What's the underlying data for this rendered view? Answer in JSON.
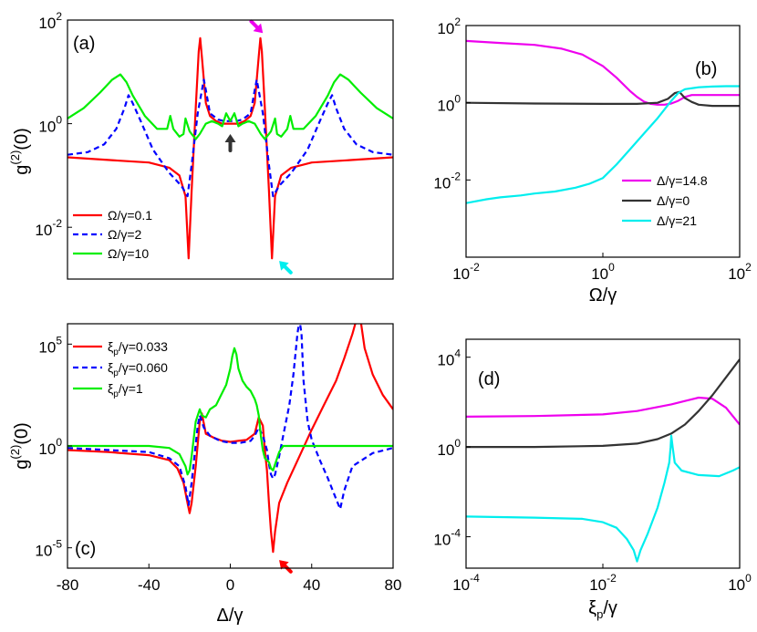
{
  "colors": {
    "red": "#ff0000",
    "blue": "#0000ff",
    "green": "#00ee00",
    "magenta": "#ee00ee",
    "dark": "#333333",
    "cyan": "#00eeee",
    "axis": "#000000"
  },
  "chart_data": [
    {
      "panel": "(a)",
      "type": "line",
      "xscale": "linear",
      "yscale": "log10",
      "xlim": [
        -80,
        80
      ],
      "ylim_log10": [
        -3,
        2
      ],
      "ylabel": {
        "base": "g",
        "sup": "(2)",
        "tail": "(0)"
      },
      "yticks": [
        {
          "base": "10",
          "exp": "2",
          "value_log10": 2
        },
        {
          "base": "10",
          "exp": "0",
          "value_log10": 0
        },
        {
          "base": "10",
          "exp": "-2",
          "value_log10": -2
        }
      ],
      "legend": {
        "placement": "bottom-left"
      },
      "series": [
        {
          "name": "Ω/γ=0.1",
          "color_key": "red",
          "dash": "solid",
          "x": [
            -80,
            -60,
            -40,
            -30,
            -25,
            -22,
            -20.5,
            -19,
            -17,
            -15.5,
            -14.8,
            -14,
            -12,
            -10,
            -7,
            -4,
            -2,
            0,
            2,
            4,
            7,
            10,
            12,
            14,
            14.8,
            15.5,
            17,
            19,
            20.5,
            22,
            25,
            30,
            40,
            60,
            80
          ],
          "y_log10": [
            -0.65,
            -0.7,
            -0.75,
            -0.85,
            -1,
            -1.4,
            -2.6,
            -1.3,
            0.3,
            1.4,
            1.65,
            1.3,
            0.4,
            0.15,
            0.05,
            0,
            0,
            0,
            0,
            0,
            0.05,
            0.15,
            0.4,
            1.3,
            1.65,
            1.4,
            0.3,
            -1.3,
            -2.6,
            -1.4,
            -1,
            -0.85,
            -0.75,
            -0.7,
            -0.65
          ]
        },
        {
          "name": "Ω/γ=2",
          "color_key": "blue",
          "dash": "dashed",
          "x": [
            -80,
            -70,
            -62,
            -56,
            -52,
            -50,
            -48,
            -44,
            -38,
            -30,
            -24,
            -21,
            -19,
            -16,
            -13,
            -12,
            -10,
            -6,
            -3,
            0,
            3,
            6,
            10,
            12,
            13,
            16,
            19,
            21,
            24,
            30,
            38,
            44,
            48,
            50,
            52,
            56,
            62,
            70,
            80
          ],
          "y_log10": [
            -0.6,
            -0.55,
            -0.4,
            -0.1,
            0.3,
            0.55,
            0.4,
            0.05,
            -0.5,
            -0.95,
            -1.2,
            -1.4,
            -0.8,
            0.2,
            0.85,
            0.65,
            0.2,
            0.08,
            0.05,
            0.05,
            0.05,
            0.08,
            0.2,
            0.65,
            0.85,
            0.2,
            -0.8,
            -1.4,
            -1.2,
            -0.95,
            -0.5,
            0.05,
            0.4,
            0.55,
            0.3,
            -0.1,
            -0.4,
            -0.55,
            -0.6
          ]
        },
        {
          "name": "Ω/γ=10",
          "color_key": "green",
          "dash": "solid",
          "x": [
            -80,
            -72,
            -64,
            -58,
            -54,
            -51,
            -48,
            -42,
            -36,
            -31,
            -29.5,
            -28,
            -25,
            -23,
            -22,
            -20,
            -17,
            -15,
            -12,
            -9,
            -6,
            -4,
            -2,
            0,
            2,
            4,
            6,
            9,
            12,
            15,
            17,
            20,
            22,
            23,
            25,
            28,
            29.5,
            31,
            36,
            42,
            48,
            51,
            54,
            58,
            64,
            72,
            80
          ],
          "y_log10": [
            0.1,
            0.3,
            0.6,
            0.85,
            0.95,
            0.8,
            0.55,
            0.15,
            -0.1,
            -0.1,
            0.15,
            -0.1,
            -0.25,
            -0.2,
            0.1,
            -0.15,
            -0.3,
            -0.2,
            0,
            0.05,
            0,
            -0.05,
            0.2,
            0.05,
            0.2,
            -0.05,
            0,
            0.05,
            0,
            -0.2,
            -0.3,
            -0.15,
            0.1,
            -0.2,
            -0.25,
            -0.1,
            0.15,
            -0.1,
            -0.1,
            0.15,
            0.55,
            0.8,
            0.95,
            0.85,
            0.6,
            0.3,
            0.1
          ]
        }
      ],
      "annotations": [
        {
          "kind": "arrow",
          "color_key": "magenta",
          "at_x": 16,
          "at_y_log10": 1.75,
          "direction": "down-right"
        },
        {
          "kind": "arrow",
          "color_key": "dark",
          "at_x": 0,
          "at_y_log10": -0.2,
          "direction": "up"
        },
        {
          "kind": "arrow",
          "color_key": "cyan",
          "at_x": 24,
          "at_y_log10": -2.65,
          "direction": "up-left"
        }
      ]
    },
    {
      "panel": "(b)",
      "type": "line",
      "xscale": "log10",
      "yscale": "log10",
      "xlim_log10": [
        -2,
        2
      ],
      "ylim_log10": [
        -4,
        2
      ],
      "xlabel": "Ω/γ",
      "xticks": [
        {
          "base": "10",
          "exp": "-2",
          "value_log10": -2
        },
        {
          "base": "10",
          "exp": "0",
          "value_log10": 0
        },
        {
          "base": "10",
          "exp": "2",
          "value_log10": 2
        }
      ],
      "yticks": [
        {
          "base": "10",
          "exp": "2",
          "value_log10": 2
        },
        {
          "base": "10",
          "exp": "0",
          "value_log10": 0
        },
        {
          "base": "10",
          "exp": "-2",
          "value_log10": -2
        }
      ],
      "legend": {
        "placement": "bottom-right"
      },
      "series": [
        {
          "name": "Δ/γ=14.8",
          "color_key": "magenta",
          "dash": "solid",
          "x_log10": [
            -2,
            -1.5,
            -1,
            -0.6,
            -0.3,
            0,
            0.2,
            0.4,
            0.5,
            0.6,
            0.7,
            0.8,
            0.9,
            1,
            1.1,
            1.2,
            1.3,
            1.5,
            1.7,
            2
          ],
          "y_log10": [
            1.6,
            1.55,
            1.5,
            1.4,
            1.25,
            0.95,
            0.65,
            0.3,
            0.15,
            0.03,
            -0.03,
            -0.05,
            -0.05,
            -0.02,
            0.05,
            0.15,
            0.2,
            0.2,
            0.2,
            0.2
          ]
        },
        {
          "name": "Δ/γ=0",
          "color_key": "dark",
          "dash": "solid",
          "x_log10": [
            -2,
            -1,
            0,
            0.5,
            0.8,
            0.95,
            1.05,
            1.12,
            1.2,
            1.3,
            1.4,
            1.6,
            1.8,
            2
          ],
          "y_log10": [
            0,
            -0.02,
            -0.03,
            -0.03,
            0,
            0.1,
            0.25,
            0.28,
            0.12,
            0.02,
            -0.05,
            -0.08,
            -0.08,
            -0.08
          ]
        },
        {
          "name": "Δ/γ=21",
          "color_key": "cyan",
          "dash": "solid",
          "x_log10": [
            -2,
            -1.7,
            -1.5,
            -1.2,
            -1,
            -0.7,
            -0.4,
            -0.2,
            0,
            0.2,
            0.4,
            0.6,
            0.8,
            1,
            1.1,
            1.2,
            1.4,
            1.6,
            1.8,
            2
          ],
          "y_log10": [
            -2.6,
            -2.5,
            -2.45,
            -2.4,
            -2.35,
            -2.3,
            -2.2,
            -2.1,
            -1.95,
            -1.6,
            -1.2,
            -0.8,
            -0.4,
            0.05,
            0.25,
            0.35,
            0.4,
            0.42,
            0.43,
            0.43
          ]
        }
      ]
    },
    {
      "panel": "(c)",
      "type": "line",
      "xscale": "linear",
      "yscale": "log10",
      "xlim": [
        -80,
        80
      ],
      "ylim_log10": [
        -6,
        6
      ],
      "xlabel": "Δ/γ",
      "ylabel": {
        "base": "g",
        "sup": "(2)",
        "tail": "(0)"
      },
      "xticks": [
        "-80",
        "-40",
        "0",
        "40",
        "80"
      ],
      "yticks": [
        {
          "base": "10",
          "exp": "5",
          "value_log10": 5
        },
        {
          "base": "10",
          "exp": "0",
          "value_log10": 0
        },
        {
          "base": "10",
          "exp": "-5",
          "value_log10": -5
        }
      ],
      "legend": {
        "placement": "top-left"
      },
      "series": [
        {
          "name": "ξp/γ=0.033",
          "name_parts": [
            "ξ",
            "p",
            "/γ=0.033"
          ],
          "color_key": "red",
          "dash": "solid",
          "x": [
            -80,
            -60,
            -40,
            -30,
            -26,
            -23,
            -21,
            -20,
            -19,
            -17,
            -15,
            -14,
            -12,
            -8,
            -4,
            0,
            4,
            8,
            12,
            14,
            16,
            17,
            18,
            19,
            20,
            21,
            22,
            24,
            28,
            34,
            40,
            46,
            52,
            56,
            60,
            62,
            63,
            64,
            66,
            70,
            75,
            80
          ],
          "y_log10": [
            -0.2,
            -0.3,
            -0.45,
            -0.7,
            -1.1,
            -1.8,
            -2.8,
            -3.3,
            -2.8,
            -1,
            1.2,
            1.6,
            0.6,
            0.4,
            0.25,
            0.2,
            0.25,
            0.3,
            0.6,
            1.4,
            1,
            -0.2,
            -1.2,
            -2.8,
            -4.2,
            -5.2,
            -4.2,
            -2.8,
            -1.8,
            -0.5,
            0.8,
            2,
            3.2,
            4.3,
            5.5,
            6.2,
            6.2,
            6.2,
            4.8,
            3.5,
            2.5,
            1.8
          ]
        },
        {
          "name": "ξp/γ=0.060",
          "name_parts": [
            "ξ",
            "p",
            "/γ=0.060"
          ],
          "color_key": "blue",
          "dash": "dashed",
          "x": [
            -80,
            -40,
            -30,
            -25,
            -22,
            -20.5,
            -19,
            -16,
            -15,
            -13,
            -10,
            -5,
            0,
            5,
            10,
            12,
            14,
            16,
            18,
            19,
            20,
            21,
            22,
            24,
            26,
            29,
            31,
            33,
            34,
            35,
            36,
            38,
            40,
            44,
            48,
            52,
            54,
            56,
            60,
            70,
            80
          ],
          "y_log10": [
            -0.1,
            -0.3,
            -0.6,
            -1,
            -2,
            -2.9,
            -1.8,
            1,
            1.5,
            0.9,
            0.5,
            0.25,
            0.15,
            0.15,
            0.25,
            0.5,
            0.9,
            0.5,
            -0.2,
            -0.9,
            -1.4,
            -1.6,
            -1.4,
            -0.5,
            0.5,
            2,
            3.5,
            5.5,
            6.2,
            5.5,
            3.2,
            1.2,
            0.3,
            -0.7,
            -1.6,
            -2.6,
            -3.1,
            -2.2,
            -1,
            -0.35,
            -0.1
          ]
        },
        {
          "name": "ξp/γ=1",
          "name_parts": [
            "ξ",
            "p",
            "/γ=1"
          ],
          "color_key": "green",
          "dash": "solid",
          "x": [
            -80,
            -40,
            -30,
            -25,
            -22,
            -21,
            -20,
            -19,
            -17,
            -15,
            -14,
            -12,
            -10,
            -7,
            -5,
            -2,
            0,
            1,
            2,
            3,
            4,
            6,
            8,
            10,
            12,
            13,
            14,
            15,
            16,
            17,
            18,
            19,
            20,
            21,
            22,
            24,
            26,
            30,
            40,
            60,
            80
          ],
          "y_log10": [
            0,
            0,
            -0.1,
            -0.4,
            -1,
            -1.4,
            -1.2,
            -0.5,
            1.2,
            1.8,
            1.5,
            1.4,
            1.8,
            2,
            2.4,
            3,
            3.8,
            4.4,
            4.8,
            4.5,
            3.8,
            3.2,
            2.9,
            2.7,
            2.3,
            2,
            1.5,
            0.5,
            -0.2,
            -0.6,
            -0.7,
            -0.8,
            -1.1,
            -1.2,
            -0.9,
            -0.3,
            0,
            0,
            0,
            0,
            0
          ]
        }
      ],
      "annotations": [
        {
          "kind": "arrow",
          "color_key": "red",
          "at_x": 24,
          "at_y_log10": -5.6,
          "direction": "up-left"
        }
      ]
    },
    {
      "panel": "(d)",
      "type": "line",
      "xscale": "log10",
      "yscale": "log10",
      "xlim_log10": [
        -4,
        0
      ],
      "ylim_log10": [
        -5.4,
        4.8
      ],
      "xlabel": {
        "base": "ξ",
        "sub": "p",
        "tail": "/γ"
      },
      "xticks": [
        {
          "base": "10",
          "exp": "-4",
          "value_log10": -4
        },
        {
          "base": "10",
          "exp": "-2",
          "value_log10": -2
        },
        {
          "base": "10",
          "exp": "0",
          "value_log10": 0
        }
      ],
      "yticks": [
        {
          "base": "10",
          "exp": "4",
          "value_log10": 4
        },
        {
          "base": "10",
          "exp": "0",
          "value_log10": 0
        },
        {
          "base": "10",
          "exp": "-4",
          "value_log10": -4
        }
      ],
      "series": [
        {
          "name": "Δ/γ=14.8",
          "color_key": "magenta",
          "dash": "solid",
          "x_log10": [
            -4,
            -3,
            -2,
            -1.5,
            -1,
            -0.8,
            -0.6,
            -0.4,
            -0.2,
            0
          ],
          "y_log10": [
            1.35,
            1.38,
            1.45,
            1.6,
            1.9,
            2.05,
            2.2,
            2.15,
            1.75,
            1.0
          ]
        },
        {
          "name": "Δ/γ=0",
          "color_key": "dark",
          "dash": "solid",
          "x_log10": [
            -4,
            -3,
            -2,
            -1.5,
            -1.2,
            -1,
            -0.8,
            -0.6,
            -0.4,
            -0.2,
            0
          ],
          "y_log10": [
            0,
            0,
            0.05,
            0.15,
            0.35,
            0.6,
            1.0,
            1.6,
            2.3,
            3.1,
            3.9
          ]
        },
        {
          "name": "Δ/γ=21",
          "color_key": "cyan",
          "dash": "solid",
          "x_log10": [
            -4,
            -3,
            -2.3,
            -2,
            -1.8,
            -1.65,
            -1.55,
            -1.5,
            -1.45,
            -1.35,
            -1.2,
            -1.1,
            -1.03,
            -1.01,
            -1.0,
            -0.98,
            -0.95,
            -0.85,
            -0.6,
            -0.3,
            -0.1,
            0
          ],
          "y_log10": [
            -3.1,
            -3.15,
            -3.2,
            -3.35,
            -3.6,
            -4.1,
            -4.6,
            -5.1,
            -4.6,
            -3.9,
            -2.7,
            -1.6,
            -0.7,
            0,
            0.5,
            0,
            -0.7,
            -1.05,
            -1.25,
            -1.3,
            -1.05,
            -0.9
          ]
        }
      ]
    }
  ]
}
